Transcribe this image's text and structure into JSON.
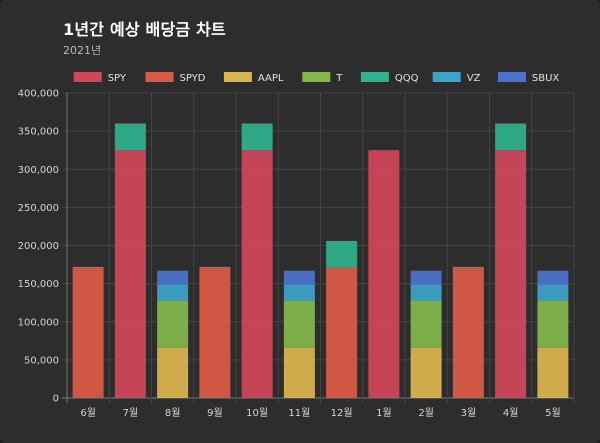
{
  "header": {
    "title": "1년간 예상 배당금 차트",
    "subtitle": "2021년"
  },
  "chart_data": {
    "type": "bar",
    "stacked": true,
    "categories": [
      "6월",
      "7월",
      "8월",
      "9월",
      "10월",
      "11월",
      "12월",
      "1월",
      "2월",
      "3월",
      "4월",
      "5월"
    ],
    "ylim": [
      0,
      400000
    ],
    "yticks": [
      "0",
      "50,000",
      "100,000",
      "150,000",
      "200,000",
      "250,000",
      "300,000",
      "350,000",
      "400,000"
    ],
    "grid": true,
    "legend_position": "top",
    "series": [
      {
        "name": "SPY",
        "color": "#d1475a",
        "values": [
          0,
          325000,
          0,
          0,
          325000,
          0,
          0,
          325000,
          0,
          0,
          325000,
          0
        ]
      },
      {
        "name": "SPYD",
        "color": "#dc5a45",
        "values": [
          172000,
          0,
          0,
          172000,
          0,
          0,
          172000,
          0,
          0,
          172000,
          0,
          0
        ]
      },
      {
        "name": "AAPL",
        "color": "#dcb54e",
        "values": [
          0,
          0,
          66000,
          0,
          0,
          66000,
          0,
          0,
          66000,
          0,
          0,
          66000
        ]
      },
      {
        "name": "T",
        "color": "#82b74b",
        "values": [
          0,
          0,
          62000,
          0,
          0,
          62000,
          0,
          0,
          62000,
          0,
          0,
          62000
        ]
      },
      {
        "name": "QQQ",
        "color": "#2fb28f",
        "values": [
          0,
          35000,
          0,
          0,
          35000,
          0,
          34000,
          0,
          0,
          0,
          35000,
          0
        ]
      },
      {
        "name": "VZ",
        "color": "#3aa4c9",
        "values": [
          0,
          0,
          21000,
          0,
          0,
          21000,
          0,
          0,
          21000,
          0,
          0,
          21000
        ]
      },
      {
        "name": "SBUX",
        "color": "#4c72d0",
        "values": [
          0,
          0,
          18000,
          0,
          0,
          18000,
          0,
          0,
          18000,
          0,
          0,
          18000
        ]
      }
    ]
  }
}
